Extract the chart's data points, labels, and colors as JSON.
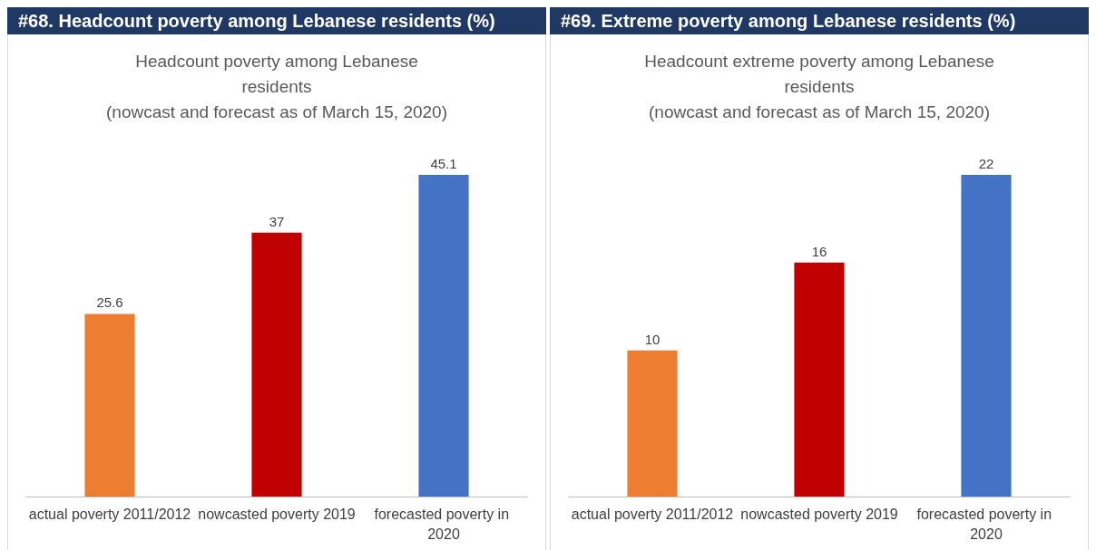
{
  "chart_data": [
    {
      "type": "bar",
      "title": "#68. Headcount poverty among Lebanese residents (%)",
      "subtitle": "Headcount poverty among Lebanese\nresidents\n(nowcast and forecast as of March 15, 2020)",
      "categories": [
        "actual poverty 2011/2012",
        "nowcasted poverty 2019",
        "forecasted poverty in 2020"
      ],
      "values": [
        25.6,
        37,
        45.1
      ],
      "colors": [
        "#ed7d31",
        "#c00000",
        "#4472c4"
      ],
      "data_labels": true
    },
    {
      "type": "bar",
      "title": "#69. Extreme poverty among Lebanese residents (%)",
      "subtitle": "Headcount extreme poverty among Lebanese\nresidents\n(nowcast and forecast as of March 15, 2020)",
      "categories": [
        "actual poverty 2011/2012",
        "nowcasted poverty 2019",
        "forecasted poverty in 2020"
      ],
      "values": [
        10,
        16,
        22
      ],
      "colors": [
        "#ed7d31",
        "#c00000",
        "#4472c4"
      ],
      "data_labels": true
    }
  ]
}
